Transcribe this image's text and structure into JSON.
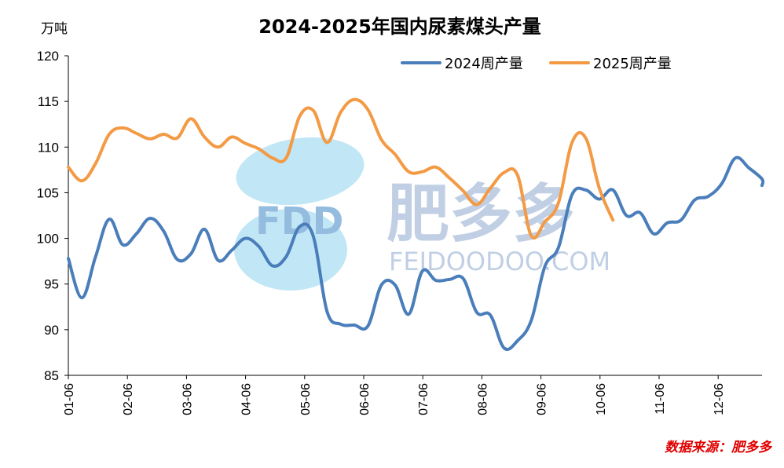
{
  "chart_data": {
    "type": "line",
    "title": "2024-2025年国内尿素煤头产量",
    "unit_label": "万吨",
    "ylim": [
      85,
      120
    ],
    "yticks": [
      85,
      90,
      95,
      100,
      105,
      110,
      115,
      120
    ],
    "month_ticks": [
      "01-06",
      "02-06",
      "03-06",
      "04-06",
      "05-06",
      "06-06",
      "07-06",
      "08-06",
      "09-06",
      "10-06",
      "11-06",
      "12-06"
    ],
    "x_unit": "week index (weekly data, starting 01-06)",
    "legend_position": "top-right",
    "grid": false,
    "source_text": "数据来源：肥多多",
    "series": [
      {
        "name": "2024周产量",
        "color": "#4a7ebb",
        "values": [
          97.8,
          93.5,
          98,
          102.1,
          99.3,
          100.5,
          102.2,
          100.8,
          97.7,
          98.3,
          101,
          97.6,
          98.7,
          100,
          99.1,
          97,
          98,
          101.3,
          100.2,
          92,
          90.6,
          90.5,
          90.4,
          94.9,
          94.9,
          91.7,
          96.4,
          95.4,
          95.5,
          95.6,
          91.9,
          91.6,
          88,
          88.8,
          91,
          96.9,
          99,
          104.8,
          105.3,
          104.3,
          105.3,
          102.5,
          102.8,
          100.5,
          101.7,
          102,
          104.2,
          104.6,
          106,
          108.8,
          107.7,
          106.5,
          105.8
        ]
      },
      {
        "name": "2025周产量",
        "color": "#f39a45",
        "values": [
          107.8,
          106.3,
          108.2,
          111.4,
          112.1,
          111.5,
          110.9,
          111.4,
          111,
          113.1,
          111.1,
          110,
          111.1,
          110.4,
          109.8,
          108.8,
          108.8,
          113.4,
          114,
          110.5,
          113.8,
          115.2,
          114.1,
          110.8,
          109.2,
          107.3,
          107.3,
          107.8,
          106.6,
          105.2,
          103.7,
          105.5,
          107.2,
          106.9,
          100.3,
          101.8,
          103.9,
          110.5,
          111,
          105.5,
          102
        ]
      }
    ]
  }
}
